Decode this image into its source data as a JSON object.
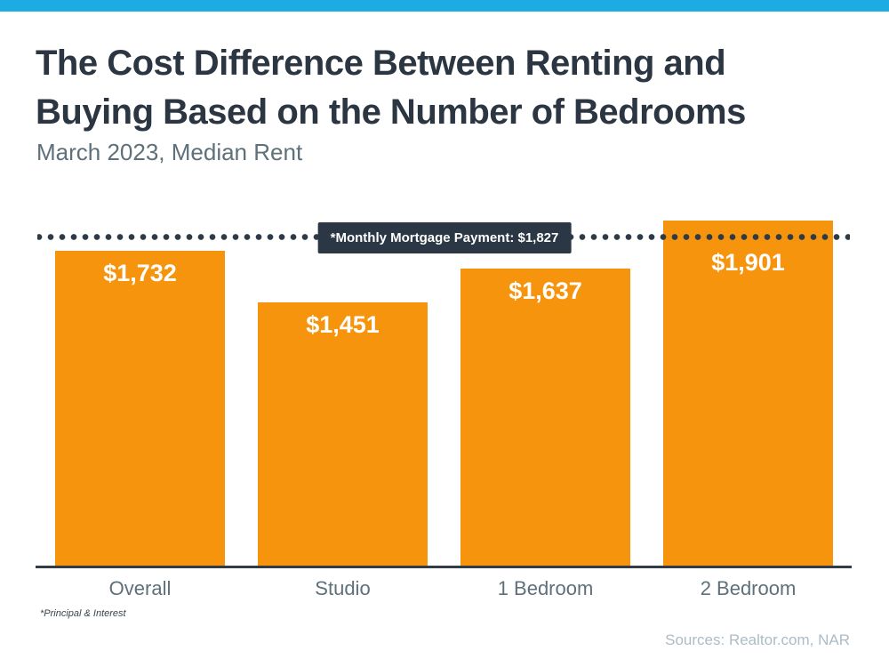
{
  "accent_bar": {
    "color": "#1CACE3"
  },
  "header": {
    "title": "The Cost Difference Between Renting and Buying Based on the Number of Bedrooms",
    "subtitle": "March 2023, Median Rent"
  },
  "chart_data": {
    "type": "bar",
    "categories": [
      "Overall",
      "Studio",
      "1 Bedroom",
      "2 Bedroom"
    ],
    "values": [
      1732,
      1451,
      1637,
      1901
    ],
    "value_labels": [
      "$1,732",
      "$1,451",
      "$1,637",
      "$1,901"
    ],
    "bar_color": "#F7940D",
    "reference_line": {
      "value": 1827,
      "label": "*Monthly Mortgage Payment: $1,827",
      "style": "dotted",
      "color": "#2E3A45"
    },
    "title": "The Cost Difference Between Renting and Buying Based on the Number of Bedrooms",
    "subtitle": "March 2023, Median Rent",
    "xlabel": "",
    "ylabel": "",
    "ylim": [
      0,
      1950
    ],
    "grid": false,
    "legend": false
  },
  "footer": {
    "footnote": "*Principal & Interest",
    "sources": "Sources: Realtor.com, NAR"
  },
  "colors": {
    "accent_blue": "#1CACE3",
    "bar_orange": "#F7940D",
    "title_dark": "#2B3642",
    "muted_blue_gray": "#5E7079",
    "badge_bg": "#2B3744",
    "axis_dark": "#333C46",
    "sources_gray": "#ABBCC6"
  }
}
